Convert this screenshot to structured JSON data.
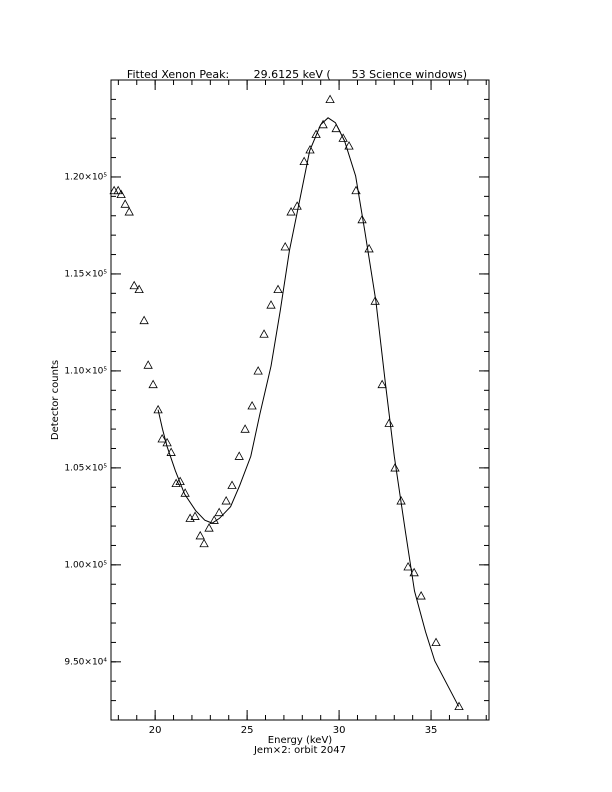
{
  "chart_data": {
    "type": "scatter",
    "title": "Fitted Xenon Peak:       29.6125 keV (      53 Science windows)",
    "xlabel": "Energy (keV)",
    "subtitle": "Jem×2: orbit 2047",
    "ylabel": "Detector counts",
    "xlim": [
      17.6,
      38.15
    ],
    "ylim": [
      92000,
      125000
    ],
    "xticks": [
      20,
      25,
      30,
      35
    ],
    "yticks": [
      {
        "value": 95000,
        "label": "9.50×10⁴"
      },
      {
        "value": 100000,
        "label": "1.00×10⁵"
      },
      {
        "value": 105000,
        "label": "1.05×10⁵"
      },
      {
        "value": 110000,
        "label": "1.10×10⁵"
      },
      {
        "value": 115000,
        "label": "1.15×10⁵"
      },
      {
        "value": 120000,
        "label": "1.20×10⁵"
      }
    ],
    "xminor": 5,
    "yminor": 5,
    "series": [
      {
        "mode": "markers",
        "marker": "triangle",
        "color": "#000000",
        "x": [
          17.77,
          17.99,
          18.15,
          18.37,
          18.59,
          18.86,
          19.13,
          19.4,
          19.62,
          19.89,
          20.16,
          20.38,
          20.65,
          20.87,
          21.14,
          21.36,
          21.63,
          21.9,
          22.17,
          22.45,
          22.66,
          22.93,
          23.21,
          23.48,
          23.86,
          24.18,
          24.57,
          24.89,
          25.27,
          25.6,
          25.92,
          26.3,
          26.68,
          27.07,
          27.39,
          27.72,
          28.1,
          28.42,
          28.75,
          29.13,
          29.51,
          29.84,
          30.22,
          30.54,
          30.92,
          31.25,
          31.63,
          31.96,
          32.34,
          32.72,
          33.04,
          33.37,
          33.75,
          34.08,
          34.46,
          35.27,
          36.52
        ],
        "values": [
          119300,
          119300,
          119100,
          118600,
          118200,
          114400,
          114200,
          112600,
          110300,
          109300,
          108000,
          106500,
          106300,
          105800,
          104200,
          104300,
          103700,
          102400,
          102500,
          101500,
          101100,
          101900,
          102300,
          102700,
          103300,
          104100,
          105600,
          107000,
          108200,
          110000,
          111900,
          113400,
          114200,
          116400,
          118200,
          118500,
          120800,
          121400,
          122200,
          122700,
          124000,
          122500,
          122000,
          121600,
          119300,
          117800,
          116300,
          113600,
          109300,
          107300,
          105000,
          103300,
          99900,
          99600,
          98400,
          96000,
          92700
        ]
      },
      {
        "mode": "line",
        "color": "#000000",
        "x": [
          20.16,
          20.4,
          20.65,
          21.1,
          21.6,
          22.2,
          22.7,
          23.1,
          23.5,
          24.1,
          24.6,
          25.2,
          25.7,
          26.3,
          26.8,
          27.3,
          27.9,
          28.4,
          29.0,
          29.4,
          29.8,
          30.3,
          30.9,
          31.4,
          32.0,
          32.5,
          33.0,
          33.6,
          34.1,
          34.7,
          35.2,
          36.5
        ],
        "values": [
          108000,
          107000,
          106100,
          104850,
          103650,
          102800,
          102300,
          102150,
          102400,
          103000,
          104100,
          105600,
          107800,
          110250,
          113100,
          116200,
          119000,
          121350,
          122700,
          123050,
          122800,
          121850,
          120050,
          117200,
          113600,
          109500,
          105600,
          101750,
          98650,
          96550,
          95050,
          92700
        ]
      }
    ]
  }
}
